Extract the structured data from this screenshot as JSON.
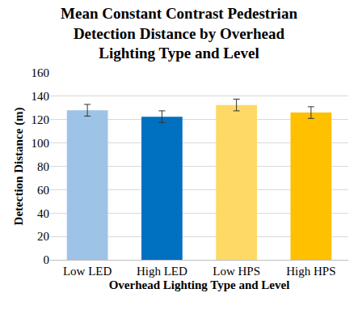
{
  "chart_data": {
    "type": "bar",
    "title": "Mean Constant Contrast Pedestrian\nDetection Distance by Overhead\nLighting Type and Level",
    "x_label": "Overhead Lighting Type and Level",
    "y_label": "Detection Distance (m)",
    "categories": [
      "Low LED",
      "High LED",
      "Low HPS",
      "High HPS"
    ],
    "values": [
      128,
      122.5,
      132.5,
      126
    ],
    "errors": [
      5,
      5,
      5,
      5
    ],
    "colors": [
      "#9dc3e6",
      "#0070c0",
      "#ffd966",
      "#ffc000"
    ],
    "ylim": [
      0,
      160
    ],
    "yticks": [
      0,
      20,
      40,
      60,
      80,
      100,
      120,
      140,
      160
    ],
    "grid": true
  }
}
